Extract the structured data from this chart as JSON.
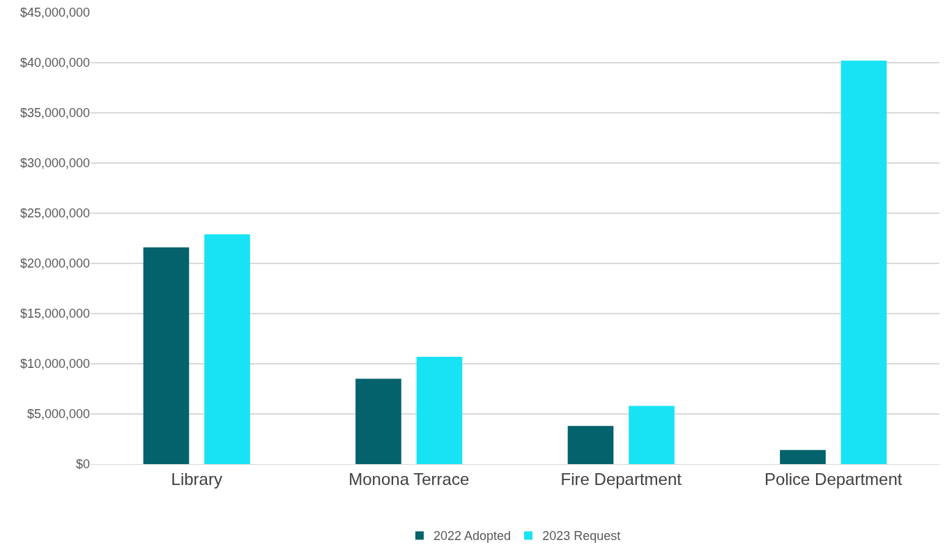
{
  "chart_data": {
    "type": "bar",
    "categories": [
      "Library",
      "Monona Terrace",
      "Fire Department",
      "Police Department"
    ],
    "series": [
      {
        "name": "2022 Adopted",
        "color": "#03626b",
        "values": [
          21600000,
          8500000,
          3800000,
          1400000
        ]
      },
      {
        "name": "2023 Request",
        "color": "#17e3f5",
        "values": [
          22900000,
          10700000,
          5800000,
          40200000
        ]
      }
    ],
    "ylim": [
      0,
      45000000
    ],
    "yticks": [
      {
        "value": 0,
        "label": "$0"
      },
      {
        "value": 5000000,
        "label": "$5,000,000"
      },
      {
        "value": 10000000,
        "label": "$10,000,000"
      },
      {
        "value": 15000000,
        "label": "$15,000,000"
      },
      {
        "value": 20000000,
        "label": "$20,000,000"
      },
      {
        "value": 25000000,
        "label": "$25,000,000"
      },
      {
        "value": 30000000,
        "label": "$30,000,000"
      },
      {
        "value": 35000000,
        "label": "$35,000,000"
      },
      {
        "value": 40000000,
        "label": "$40,000,000"
      },
      {
        "value": 45000000,
        "label": "$45,000,000"
      }
    ],
    "grid": "y",
    "legend": "bottom"
  }
}
